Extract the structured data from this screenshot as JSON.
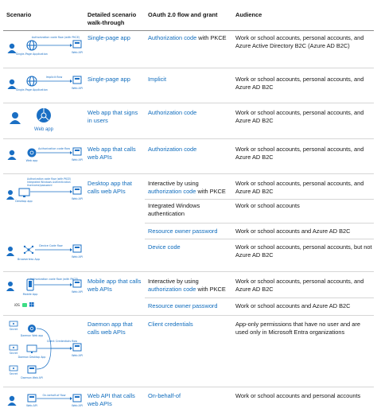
{
  "headers": {
    "scenario": "Scenario",
    "walkthrough": "Detailed scenario walk-through",
    "flow": "OAuth 2.0 flow and grant",
    "audience": "Audience"
  },
  "rows": [
    {
      "walkthrough": "Single-page app",
      "flows": [
        {
          "link": "Authorization code",
          "suffix": " with PKCE",
          "audience": "Work or school accounts, personal accounts, and Azure Active Directory B2C (Azure AD B2C)"
        }
      ],
      "diagram": {
        "caption": "Authorization code flow (with PKCE)",
        "left": "Single-Page Application",
        "right": "Web API"
      }
    },
    {
      "walkthrough": "Single-page app",
      "flows": [
        {
          "link": "Implicit",
          "suffix": "",
          "audience": "Work or school accounts, personal accounts, and Azure AD B2C"
        }
      ],
      "diagram": {
        "caption": "Implicit flow",
        "left": "Single-Page Application",
        "right": "Web API"
      }
    },
    {
      "walkthrough": "Web app that signs in users",
      "flows": [
        {
          "link": "Authorization code",
          "suffix": "",
          "audience": "Work or school accounts, personal accounts, and Azure AD B2C"
        }
      ],
      "diagram": {
        "caption": "Web app"
      }
    },
    {
      "walkthrough": "Web app that calls web APIs",
      "flows": [
        {
          "link": "Authorization code",
          "suffix": "",
          "audience": "Work or school accounts, personal accounts, and Azure AD B2C"
        }
      ],
      "diagram": {
        "caption": "Authorization code flow",
        "left": "Web app",
        "right": "Web API"
      }
    },
    {
      "walkthrough": "Desktop app that calls web APIs",
      "flows": [
        {
          "prefix": "Interactive by using ",
          "link": "authorization code",
          "suffix": " with PKCE",
          "audience": "Work or school accounts, personal accounts, and Azure AD B2C"
        },
        {
          "plain": "Integrated Windows authentication",
          "audience": "Work or school accounts"
        },
        {
          "link": "Resource owner password",
          "suffix": "",
          "audience": "Work or school accounts and Azure AD B2C"
        },
        {
          "link": "Device code",
          "suffix": "",
          "audience": "Work or school accounts, personal accounts, but not Azure AD B2C"
        }
      ],
      "diagram": {
        "caption_lines": [
          "Authorization code flow (with PKCE)",
          "Integrated Windows Authentication",
          "Username/password"
        ],
        "left": "Desktop app",
        "right": "Web API",
        "device_caption": "Device Code flow",
        "device_left": "Browserless App",
        "device_right": "Web API"
      }
    },
    {
      "walkthrough": "Mobile app that calls web APIs",
      "flows": [
        {
          "prefix": "Interactive by using ",
          "link": "authorization code",
          "suffix": " with PKCE",
          "audience": "Work or school accounts, personal accounts, and Azure AD B2C"
        },
        {
          "link": "Resource owner password",
          "suffix": "",
          "audience": "Work or school accounts and Azure AD B2C"
        }
      ],
      "diagram": {
        "caption": "Authorization code flow (with PKCE)",
        "left": "Mobile App",
        "right": "Web API",
        "platforms": "iOS"
      }
    },
    {
      "walkthrough": "Daemon app that calls web APIs",
      "flows": [
        {
          "link": "Client credentials",
          "suffix": "",
          "audience": "App-only permissions that have no user and are used only in Microsoft Entra organizations"
        }
      ],
      "diagram": {
        "caption": "Client Credentials flow",
        "secret": "Secret",
        "apps": [
          "Daemon Web app",
          "Daemon Desktop App",
          "Daemon Web API"
        ],
        "right": "Web API"
      }
    },
    {
      "walkthrough": "Web API that calls web APIs",
      "flows": [
        {
          "link": "On-behalf-of",
          "suffix": "",
          "audience": "Work or school accounts and personal accounts"
        }
      ],
      "diagram": {
        "caption": "On-behalf-of flow",
        "left": "Web API",
        "right": "Web API"
      }
    }
  ],
  "colors": {
    "link": "#0f6cbd",
    "icon": "#1a6fc4",
    "text": "#161616",
    "rule": "#d6d6d6"
  }
}
